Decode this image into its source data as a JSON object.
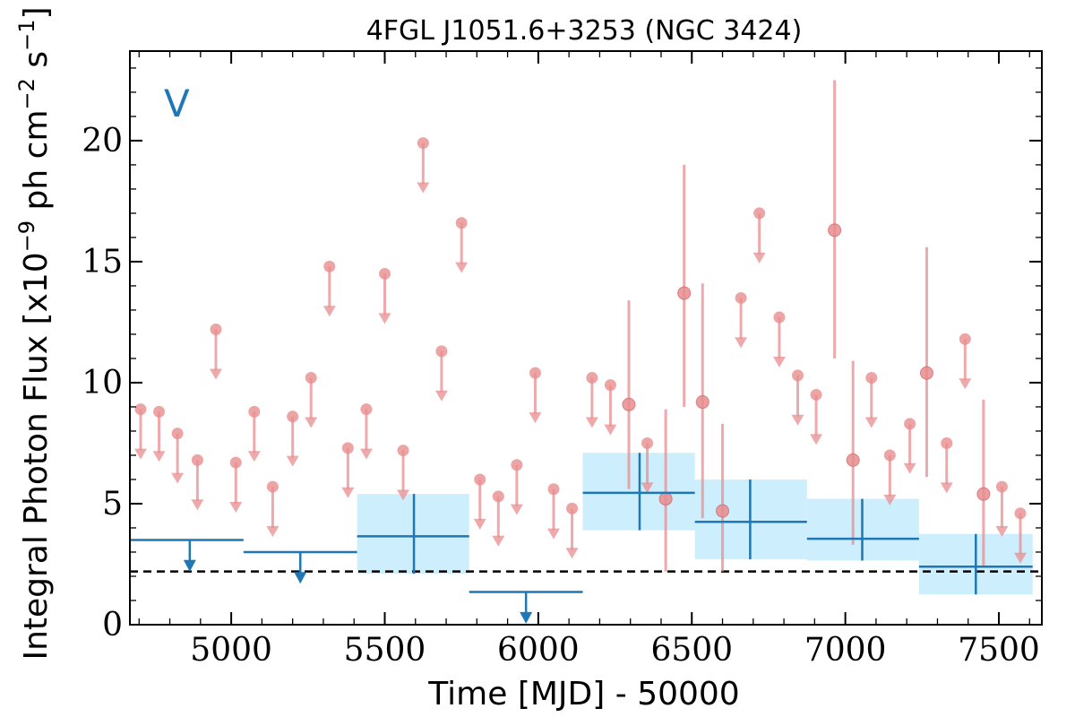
{
  "chart_data": {
    "type": "scatter",
    "title": "4FGL J1051.6+3253 (NGC 3424)",
    "xlabel": "Time [MJD] - 50000",
    "ylabel": "Integral Photon Flux [x10^-9 ph cm^-2 s^-1]",
    "ylabel_parts": {
      "base": "Integral Photon Flux [x10",
      "exp1": "−9",
      "mid": " ph cm",
      "exp2": "−2",
      "mid2": " s",
      "exp3": "−1",
      "end": "]"
    },
    "panel_label": "V",
    "xlim": [
      4670,
      7640
    ],
    "ylim": [
      0,
      23.7
    ],
    "x_ticks": [
      5000,
      5500,
      6000,
      6500,
      7000,
      7500
    ],
    "y_ticks": [
      0,
      5,
      10,
      15,
      20
    ],
    "x_minor_step": 100,
    "y_minor_step": 1,
    "threshold_line": 2.2,
    "colors": {
      "monthly": "#e88d8f",
      "yearly": "#1f77b4",
      "yearly_band": "#cdeefc",
      "threshold": "#000000"
    },
    "monthly_upper_limits": [
      {
        "x": 4705,
        "y": 8.9
      },
      {
        "x": 4765,
        "y": 8.8
      },
      {
        "x": 4825,
        "y": 7.9
      },
      {
        "x": 4890,
        "y": 6.8
      },
      {
        "x": 5015,
        "y": 6.7
      },
      {
        "x": 4950,
        "y": 12.2
      },
      {
        "x": 5075,
        "y": 8.8
      },
      {
        "x": 5135,
        "y": 5.7
      },
      {
        "x": 5200,
        "y": 8.6
      },
      {
        "x": 5260,
        "y": 10.2
      },
      {
        "x": 5320,
        "y": 14.8
      },
      {
        "x": 5380,
        "y": 7.3
      },
      {
        "x": 5440,
        "y": 8.9
      },
      {
        "x": 5500,
        "y": 14.5
      },
      {
        "x": 5560,
        "y": 7.2
      },
      {
        "x": 5625,
        "y": 19.9
      },
      {
        "x": 5685,
        "y": 11.3
      },
      {
        "x": 5750,
        "y": 16.6
      },
      {
        "x": 5810,
        "y": 6.0
      },
      {
        "x": 5870,
        "y": 5.3
      },
      {
        "x": 5930,
        "y": 6.6
      },
      {
        "x": 5990,
        "y": 10.4
      },
      {
        "x": 6050,
        "y": 5.6
      },
      {
        "x": 6110,
        "y": 4.8
      },
      {
        "x": 6175,
        "y": 10.2
      },
      {
        "x": 6235,
        "y": 9.9
      },
      {
        "x": 6355,
        "y": 7.5
      },
      {
        "x": 6660,
        "y": 13.5
      },
      {
        "x": 6720,
        "y": 17.0
      },
      {
        "x": 6785,
        "y": 12.7
      },
      {
        "x": 6845,
        "y": 10.3
      },
      {
        "x": 6905,
        "y": 9.5
      },
      {
        "x": 7085,
        "y": 10.2
      },
      {
        "x": 7145,
        "y": 7.0
      },
      {
        "x": 7210,
        "y": 8.3
      },
      {
        "x": 7330,
        "y": 7.5
      },
      {
        "x": 7390,
        "y": 11.8
      },
      {
        "x": 7510,
        "y": 5.7
      },
      {
        "x": 7570,
        "y": 4.6
      }
    ],
    "monthly_detections": [
      {
        "x": 6295,
        "y": 9.1,
        "ylo": 5.6,
        "yhi": 13.4
      },
      {
        "x": 6415,
        "y": 5.2,
        "ylo": 2.2,
        "yhi": 8.9
      },
      {
        "x": 6475,
        "y": 13.7,
        "ylo": 9.0,
        "yhi": 19.0
      },
      {
        "x": 6535,
        "y": 9.2,
        "ylo": 4.4,
        "yhi": 14.1
      },
      {
        "x": 6600,
        "y": 4.7,
        "ylo": 2.2,
        "yhi": 8.3
      },
      {
        "x": 6965,
        "y": 16.3,
        "ylo": 11.0,
        "yhi": 22.5
      },
      {
        "x": 7025,
        "y": 6.8,
        "ylo": 3.3,
        "yhi": 10.9
      },
      {
        "x": 7265,
        "y": 10.4,
        "ylo": 6.1,
        "yhi": 15.6
      },
      {
        "x": 7450,
        "y": 5.4,
        "ylo": 2.4,
        "yhi": 9.3
      }
    ],
    "yearly_upper_limits": [
      {
        "x0": 4670,
        "x1": 5040,
        "xc": 4865,
        "y": 3.5
      },
      {
        "x0": 5040,
        "x1": 5410,
        "xc": 5225,
        "y": 3.0
      },
      {
        "x0": 5775,
        "x1": 6145,
        "xc": 5960,
        "y": 1.35
      }
    ],
    "yearly_detections": [
      {
        "x0": 5410,
        "x1": 5775,
        "xc": 5595,
        "y": 3.65,
        "ylo": 2.1,
        "yhi": 5.4
      },
      {
        "x0": 6145,
        "x1": 6510,
        "xc": 6330,
        "y": 5.45,
        "ylo": 3.9,
        "yhi": 7.1
      },
      {
        "x0": 6510,
        "x1": 6875,
        "xc": 6690,
        "y": 4.25,
        "ylo": 2.7,
        "yhi": 6.0
      },
      {
        "x0": 6875,
        "x1": 7240,
        "xc": 7055,
        "y": 3.55,
        "ylo": 2.65,
        "yhi": 5.2
      },
      {
        "x0": 7240,
        "x1": 7610,
        "xc": 7425,
        "y": 2.4,
        "ylo": 1.25,
        "yhi": 3.75
      }
    ]
  }
}
